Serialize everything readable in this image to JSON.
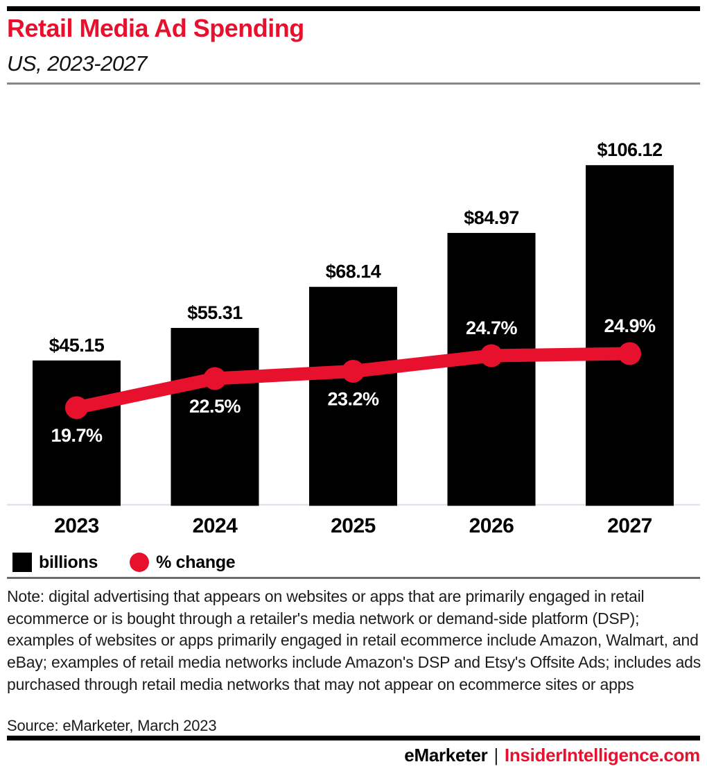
{
  "header": {
    "title": "Retail Media Ad Spending",
    "subtitle": "US, 2023-2027",
    "title_color": "#e8112d"
  },
  "chart_data": {
    "type": "bar",
    "subtype": "bar+line combo",
    "title": "Retail Media Ad Spending",
    "subtitle": "US, 2023-2027",
    "categories": [
      "2023",
      "2024",
      "2025",
      "2026",
      "2027"
    ],
    "series": [
      {
        "name": "billions",
        "chart_type": "bar",
        "color": "#000000",
        "values": [
          45.15,
          55.31,
          68.14,
          84.97,
          106.12
        ],
        "data_labels": [
          "$45.15",
          "$55.31",
          "$68.14",
          "$84.97",
          "$106.12"
        ],
        "data_label_color": "#000000"
      },
      {
        "name": "% change",
        "chart_type": "line",
        "color": "#e8112d",
        "values": [
          19.7,
          22.5,
          23.2,
          24.7,
          24.9
        ],
        "data_labels": [
          "19.7%",
          "22.5%",
          "23.2%",
          "24.7%",
          "24.9%"
        ],
        "data_label_color": "#ffffff",
        "data_label_side": [
          "below",
          "below",
          "below",
          "above",
          "above"
        ]
      }
    ],
    "xlabel": "",
    "ylabel": "",
    "axes": "no numeric axes; values shown as data labels",
    "grid": false,
    "legend_position": "bottom-left"
  },
  "legend": {
    "bar_label": "billions",
    "line_label": "% change",
    "bar_color": "#000000",
    "line_color": "#e8112d"
  },
  "footnote": {
    "note": "Note: digital advertising that appears on websites or apps that are primarily engaged in retail ecommerce or is bought through a retailer's media network or demand-side platform (DSP); examples of websites or apps primarily engaged in retail ecommerce include Amazon, Walmart, and eBay; examples of retail media networks include Amazon's DSP and Etsy's Offsite Ads; includes ads purchased through retail media networks that may not appear on ecommerce sites or apps",
    "source": "Source: eMarketer, March 2023"
  },
  "footer": {
    "brand": "eMarketer",
    "separator": "|",
    "site": "InsiderIntelligence.com",
    "site_color": "#e8112d"
  }
}
